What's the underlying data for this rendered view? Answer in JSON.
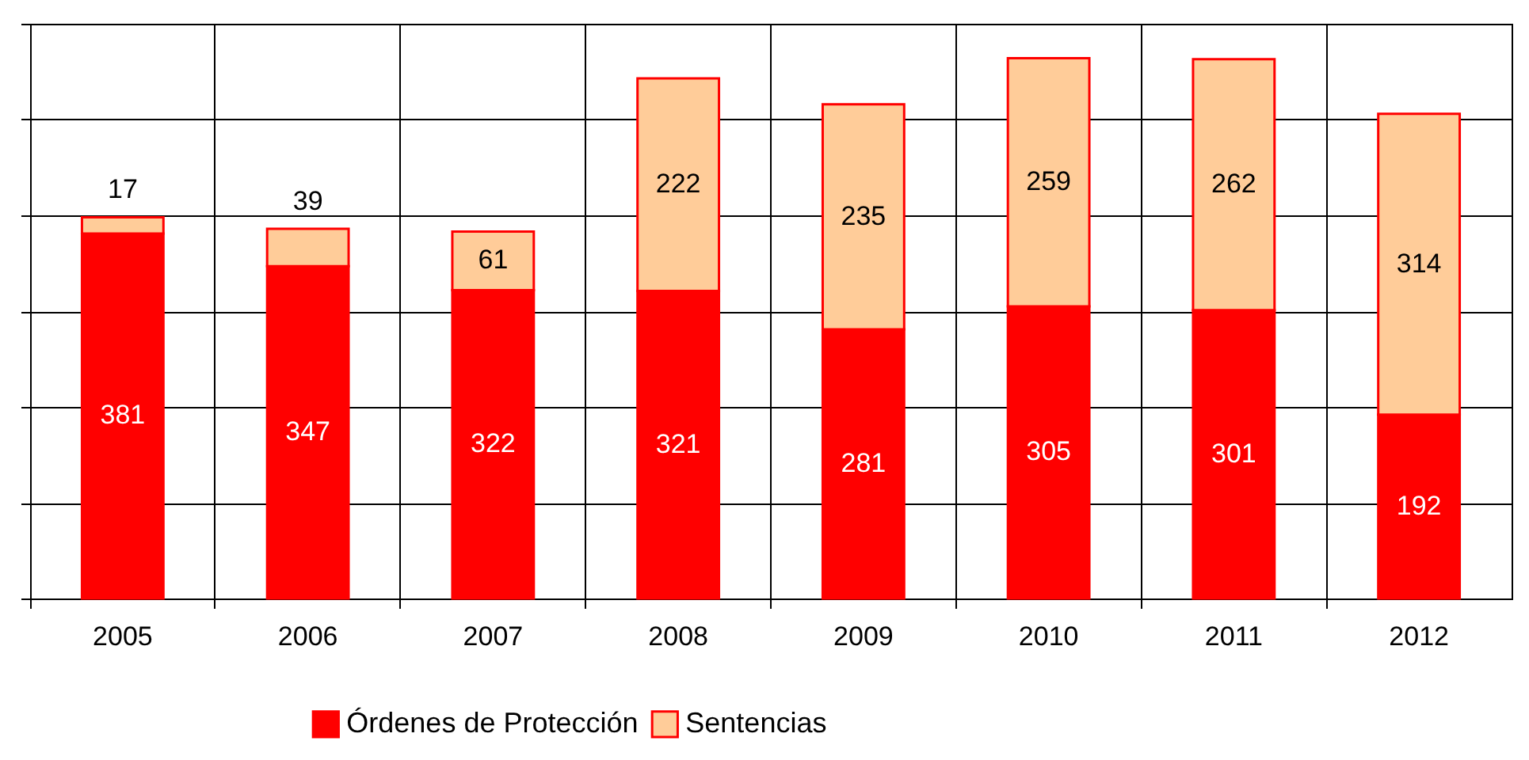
{
  "chart_data": {
    "type": "bar",
    "stacked": true,
    "categories": [
      "2005",
      "2006",
      "2007",
      "2008",
      "2009",
      "2010",
      "2011",
      "2012"
    ],
    "series": [
      {
        "name": "Órdenes de Protección",
        "color": "#ff0000",
        "values": [
          381,
          347,
          322,
          321,
          281,
          305,
          301,
          192
        ]
      },
      {
        "name": "Sentencias",
        "color": "#ffcc99",
        "values": [
          17,
          39,
          61,
          222,
          235,
          259,
          262,
          314
        ]
      }
    ],
    "ylim": [
      0,
      600
    ],
    "yticks": [
      {
        "value": 0,
        "label": null
      },
      {
        "value": 100,
        "label": null
      },
      {
        "value": 200,
        "label": null
      },
      {
        "value": 300,
        "label": null
      },
      {
        "value": 400,
        "label": null
      },
      {
        "value": 500,
        "label": null
      },
      {
        "value": 600,
        "label": null
      }
    ],
    "tick_labels": "x",
    "grid": true,
    "data_labels": true,
    "legend": "bottom"
  }
}
